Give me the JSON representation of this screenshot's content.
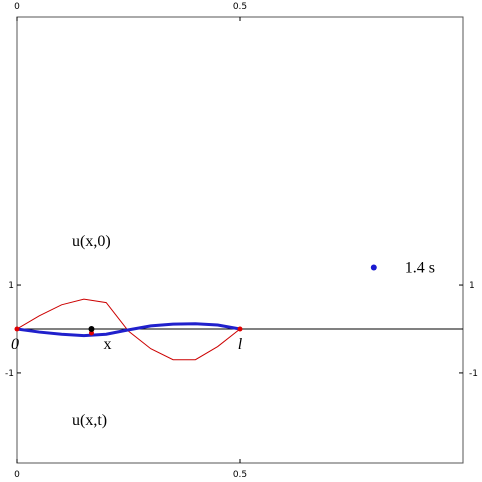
{
  "chart_data": {
    "type": "line",
    "x": [
      0,
      0.05,
      0.1,
      0.15,
      0.2,
      0.25,
      0.3,
      0.35,
      0.4,
      0.45,
      0.5
    ],
    "series": [
      {
        "color": "#cc0000",
        "values": [
          0,
          0.3,
          0.55,
          0.68,
          0.6,
          -0.05,
          -0.45,
          -0.7,
          -0.7,
          -0.4,
          0
        ]
      },
      {
        "color": "#2020cc",
        "values": [
          0,
          -0.07,
          -0.12,
          -0.15,
          -0.12,
          -0.02,
          0.07,
          0.11,
          0.12,
          0.09,
          0
        ]
      }
    ],
    "points": {
      "x": [
        0,
        0.167,
        0.5
      ],
      "values": [
        0,
        0,
        0
      ],
      "labels": [
        "0",
        "x",
        "l"
      ]
    },
    "time_marker": {
      "x": 0.8,
      "value": 1.4,
      "label": "1.4 s"
    },
    "annotations": [
      "u(x,0)",
      "u(x,t)"
    ],
    "xlim": [
      0,
      1
    ],
    "ylim": [
      -3.05,
      7.1
    ],
    "xticks": [
      0,
      0.5
    ],
    "yticks": [
      -1,
      1
    ]
  }
}
